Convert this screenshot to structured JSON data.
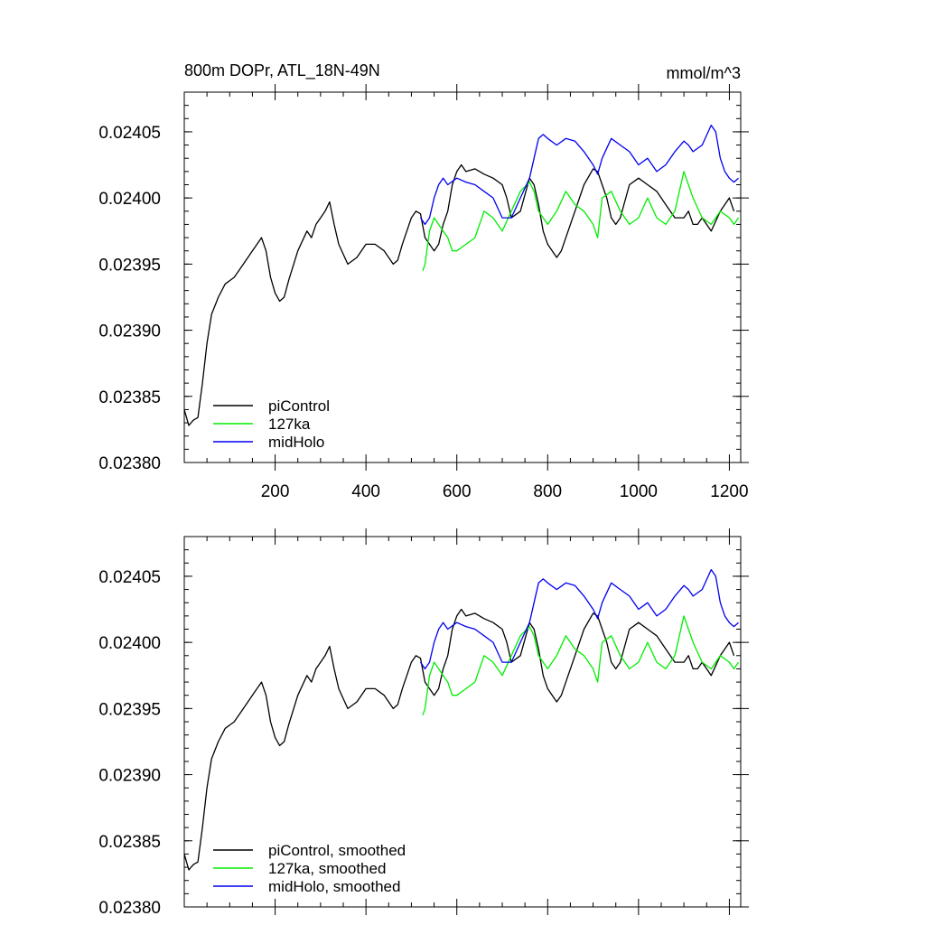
{
  "chart_data": [
    {
      "type": "line",
      "title": "800m DOPr, ATL_18N-49N",
      "units": "mmol/m^3",
      "xlabel": "",
      "ylabel": "",
      "xlim": [
        0,
        1225
      ],
      "ylim": [
        0.0238,
        0.02408
      ],
      "xticks": [
        200,
        400,
        600,
        800,
        1000,
        1200
      ],
      "xtick_labels": [
        "200",
        "400",
        "600",
        "800",
        "1000",
        "1200"
      ],
      "yticks": [
        0.0238,
        0.02385,
        0.0239,
        0.02395,
        0.024,
        0.02405
      ],
      "ytick_labels": [
        "0.02380",
        "0.02385",
        "0.02390",
        "0.02395",
        "0.02400",
        "0.02405"
      ],
      "legend_position": "bottom-left",
      "series": [
        {
          "name": "piControl",
          "color": "#000000",
          "x": [
            0,
            10,
            20,
            30,
            40,
            50,
            60,
            75,
            90,
            110,
            130,
            150,
            170,
            180,
            190,
            200,
            210,
            220,
            230,
            250,
            270,
            280,
            290,
            300,
            310,
            320,
            330,
            340,
            360,
            380,
            400,
            420,
            440,
            460,
            470,
            480,
            500,
            510,
            520,
            530,
            540,
            550,
            560,
            570,
            580,
            590,
            600,
            610,
            620,
            640,
            660,
            680,
            700,
            710,
            720,
            740,
            760,
            770,
            780,
            790,
            800,
            810,
            820,
            830,
            840,
            860,
            880,
            900,
            910,
            920,
            930,
            940,
            950,
            960,
            980,
            1000,
            1020,
            1040,
            1060,
            1080,
            1100,
            1110,
            1120,
            1130,
            1140,
            1160,
            1180,
            1200,
            1210
          ],
          "y": [
            0.02384,
            0.023828,
            0.023832,
            0.023834,
            0.02386,
            0.02389,
            0.023912,
            0.023925,
            0.023935,
            0.02394,
            0.02395,
            0.02396,
            0.02397,
            0.02396,
            0.02394,
            0.023928,
            0.023922,
            0.023925,
            0.023938,
            0.02396,
            0.023975,
            0.02397,
            0.02398,
            0.023985,
            0.02399,
            0.023997,
            0.02398,
            0.023965,
            0.02395,
            0.023955,
            0.023965,
            0.023965,
            0.02396,
            0.02395,
            0.023953,
            0.023965,
            0.023985,
            0.02399,
            0.023988,
            0.02397,
            0.023965,
            0.02396,
            0.023965,
            0.02398,
            0.02399,
            0.02401,
            0.02402,
            0.024025,
            0.02402,
            0.024022,
            0.024018,
            0.024015,
            0.02401,
            0.024,
            0.023985,
            0.02399,
            0.024015,
            0.02401,
            0.023995,
            0.023975,
            0.023965,
            0.02396,
            0.023955,
            0.02396,
            0.02397,
            0.02399,
            0.02401,
            0.024022,
            0.02402,
            0.02401,
            0.024,
            0.023985,
            0.02398,
            0.023985,
            0.02401,
            0.024015,
            0.02401,
            0.024005,
            0.023995,
            0.023985,
            0.023985,
            0.02399,
            0.02398,
            0.02398,
            0.023985,
            0.023975,
            0.02399,
            0.024,
            0.02399
          ]
        },
        {
          "name": "127ka",
          "color": "#00ee00",
          "x": [
            525,
            530,
            540,
            550,
            560,
            570,
            580,
            590,
            600,
            620,
            640,
            660,
            680,
            700,
            720,
            740,
            760,
            770,
            780,
            790,
            800,
            820,
            840,
            860,
            880,
            900,
            910,
            920,
            940,
            960,
            980,
            1000,
            1020,
            1040,
            1060,
            1080,
            1090,
            1100,
            1120,
            1140,
            1160,
            1180,
            1200,
            1210,
            1220
          ],
          "y": [
            0.023945,
            0.02395,
            0.023975,
            0.023985,
            0.02398,
            0.023975,
            0.02397,
            0.02396,
            0.02396,
            0.023965,
            0.02397,
            0.02399,
            0.023985,
            0.023975,
            0.02399,
            0.024005,
            0.024012,
            0.024005,
            0.02399,
            0.023985,
            0.02398,
            0.02399,
            0.024005,
            0.023995,
            0.02399,
            0.02398,
            0.02397,
            0.024,
            0.024005,
            0.02399,
            0.02398,
            0.023985,
            0.024,
            0.023985,
            0.02398,
            0.02399,
            0.024005,
            0.02402,
            0.024,
            0.023985,
            0.02398,
            0.02399,
            0.023985,
            0.02398,
            0.023985
          ]
        },
        {
          "name": "midHolo",
          "color": "#0000ee",
          "x": [
            520,
            530,
            540,
            550,
            560,
            570,
            580,
            600,
            620,
            640,
            660,
            680,
            700,
            720,
            740,
            760,
            770,
            780,
            790,
            800,
            820,
            840,
            860,
            880,
            900,
            910,
            920,
            940,
            960,
            980,
            1000,
            1020,
            1040,
            1060,
            1080,
            1100,
            1110,
            1120,
            1140,
            1160,
            1170,
            1180,
            1190,
            1200,
            1210,
            1220
          ],
          "y": [
            0.023985,
            0.02398,
            0.023985,
            0.024,
            0.02401,
            0.024015,
            0.02401,
            0.024015,
            0.024012,
            0.02401,
            0.024005,
            0.024,
            0.023985,
            0.023985,
            0.024,
            0.024015,
            0.02403,
            0.024045,
            0.024048,
            0.024045,
            0.02404,
            0.024045,
            0.024043,
            0.024035,
            0.024025,
            0.024018,
            0.02403,
            0.024045,
            0.02404,
            0.024035,
            0.024025,
            0.02403,
            0.02402,
            0.024025,
            0.024035,
            0.024043,
            0.02404,
            0.024035,
            0.02404,
            0.024055,
            0.02405,
            0.02403,
            0.02402,
            0.024015,
            0.024012,
            0.024015
          ]
        }
      ]
    },
    {
      "type": "line",
      "title": "",
      "units": "",
      "xlabel": "",
      "ylabel": "",
      "xlim": [
        0,
        1225
      ],
      "ylim": [
        0.0238,
        0.02408
      ],
      "xticks": [
        200,
        400,
        600,
        800,
        1000,
        1200
      ],
      "xtick_labels": [],
      "yticks": [
        0.0238,
        0.02385,
        0.0239,
        0.02395,
        0.024,
        0.02405
      ],
      "ytick_labels": [
        "0.02380",
        "0.02385",
        "0.02390",
        "0.02395",
        "0.02400",
        "0.02405"
      ],
      "legend_position": "bottom-left",
      "series": [
        {
          "name": "piControl, smoothed",
          "color": "#000000",
          "x": [
            0,
            10,
            20,
            30,
            40,
            50,
            60,
            75,
            90,
            110,
            130,
            150,
            170,
            180,
            190,
            200,
            210,
            220,
            230,
            250,
            270,
            280,
            290,
            300,
            310,
            320,
            330,
            340,
            360,
            380,
            400,
            420,
            440,
            460,
            470,
            480,
            500,
            510,
            520,
            530,
            540,
            550,
            560,
            570,
            580,
            590,
            600,
            610,
            620,
            640,
            660,
            680,
            700,
            710,
            720,
            740,
            760,
            770,
            780,
            790,
            800,
            810,
            820,
            830,
            840,
            860,
            880,
            900,
            910,
            920,
            930,
            940,
            950,
            960,
            980,
            1000,
            1020,
            1040,
            1060,
            1080,
            1100,
            1110,
            1120,
            1130,
            1140,
            1160,
            1180,
            1200,
            1210
          ],
          "y": [
            0.02384,
            0.023828,
            0.023832,
            0.023834,
            0.02386,
            0.02389,
            0.023912,
            0.023925,
            0.023935,
            0.02394,
            0.02395,
            0.02396,
            0.02397,
            0.02396,
            0.02394,
            0.023928,
            0.023922,
            0.023925,
            0.023938,
            0.02396,
            0.023975,
            0.02397,
            0.02398,
            0.023985,
            0.02399,
            0.023997,
            0.02398,
            0.023965,
            0.02395,
            0.023955,
            0.023965,
            0.023965,
            0.02396,
            0.02395,
            0.023953,
            0.023965,
            0.023985,
            0.02399,
            0.023988,
            0.02397,
            0.023965,
            0.02396,
            0.023965,
            0.02398,
            0.02399,
            0.02401,
            0.02402,
            0.024025,
            0.02402,
            0.024022,
            0.024018,
            0.024015,
            0.02401,
            0.024,
            0.023985,
            0.02399,
            0.024015,
            0.02401,
            0.023995,
            0.023975,
            0.023965,
            0.02396,
            0.023955,
            0.02396,
            0.02397,
            0.02399,
            0.02401,
            0.024022,
            0.02402,
            0.02401,
            0.024,
            0.023985,
            0.02398,
            0.023985,
            0.02401,
            0.024015,
            0.02401,
            0.024005,
            0.023995,
            0.023985,
            0.023985,
            0.02399,
            0.02398,
            0.02398,
            0.023985,
            0.023975,
            0.02399,
            0.024,
            0.02399
          ]
        },
        {
          "name": "127ka, smoothed",
          "color": "#00ee00",
          "x": [
            525,
            530,
            540,
            550,
            560,
            570,
            580,
            590,
            600,
            620,
            640,
            660,
            680,
            700,
            720,
            740,
            760,
            770,
            780,
            790,
            800,
            820,
            840,
            860,
            880,
            900,
            910,
            920,
            940,
            960,
            980,
            1000,
            1020,
            1040,
            1060,
            1080,
            1090,
            1100,
            1120,
            1140,
            1160,
            1180,
            1200,
            1210,
            1220
          ],
          "y": [
            0.023945,
            0.02395,
            0.023975,
            0.023985,
            0.02398,
            0.023975,
            0.02397,
            0.02396,
            0.02396,
            0.023965,
            0.02397,
            0.02399,
            0.023985,
            0.023975,
            0.02399,
            0.024005,
            0.024012,
            0.024005,
            0.02399,
            0.023985,
            0.02398,
            0.02399,
            0.024005,
            0.023995,
            0.02399,
            0.02398,
            0.02397,
            0.024,
            0.024005,
            0.02399,
            0.02398,
            0.023985,
            0.024,
            0.023985,
            0.02398,
            0.02399,
            0.024005,
            0.02402,
            0.024,
            0.023985,
            0.02398,
            0.02399,
            0.023985,
            0.02398,
            0.023985
          ]
        },
        {
          "name": "midHolo, smoothed",
          "color": "#0000ee",
          "x": [
            520,
            530,
            540,
            550,
            560,
            570,
            580,
            600,
            620,
            640,
            660,
            680,
            700,
            720,
            740,
            760,
            770,
            780,
            790,
            800,
            820,
            840,
            860,
            880,
            900,
            910,
            920,
            940,
            960,
            980,
            1000,
            1020,
            1040,
            1060,
            1080,
            1100,
            1110,
            1120,
            1140,
            1160,
            1170,
            1180,
            1190,
            1200,
            1210,
            1220
          ],
          "y": [
            0.023985,
            0.02398,
            0.023985,
            0.024,
            0.02401,
            0.024015,
            0.02401,
            0.024015,
            0.024012,
            0.02401,
            0.024005,
            0.024,
            0.023985,
            0.023985,
            0.024,
            0.024015,
            0.02403,
            0.024045,
            0.024048,
            0.024045,
            0.02404,
            0.024045,
            0.024043,
            0.024035,
            0.024025,
            0.024018,
            0.02403,
            0.024045,
            0.02404,
            0.024035,
            0.024025,
            0.02403,
            0.02402,
            0.024025,
            0.024035,
            0.024043,
            0.02404,
            0.024035,
            0.02404,
            0.024055,
            0.02405,
            0.02403,
            0.02402,
            0.024015,
            0.024012,
            0.024015
          ]
        }
      ]
    }
  ]
}
